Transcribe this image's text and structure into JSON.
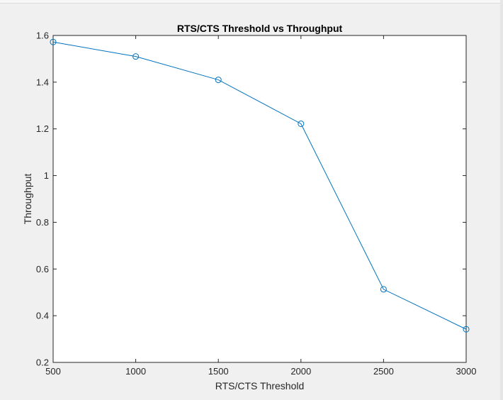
{
  "chart_data": {
    "type": "line",
    "title": "RTS/CTS Threshold vs Throughput",
    "xlabel": "RTS/CTS Threshold",
    "ylabel": "Throughput",
    "x": [
      500,
      1000,
      1500,
      2000,
      2500,
      3000
    ],
    "series": [
      {
        "values": [
          1.572,
          1.51,
          1.41,
          1.222,
          0.513,
          0.342
        ]
      }
    ],
    "xlim": [
      500,
      3000
    ],
    "ylim": [
      0.2,
      1.6
    ],
    "xticks": [
      500,
      1000,
      1500,
      2000,
      2500,
      3000
    ],
    "xtick_labels": [
      "500",
      "1000",
      "1500",
      "2000",
      "2500",
      "3000"
    ],
    "yticks": [
      0.2,
      0.4,
      0.6,
      0.8,
      1.0,
      1.2,
      1.4,
      1.6
    ],
    "ytick_labels": [
      "0.2",
      "0.4",
      "0.6",
      "0.8",
      "1",
      "1.2",
      "1.4",
      "1.6"
    ],
    "marker": "circle",
    "grid": false,
    "colors": {
      "line": "#0072BD",
      "axes": "#262626",
      "axes_background": "#ffffff",
      "figure_background": "#f0f0f0"
    }
  }
}
